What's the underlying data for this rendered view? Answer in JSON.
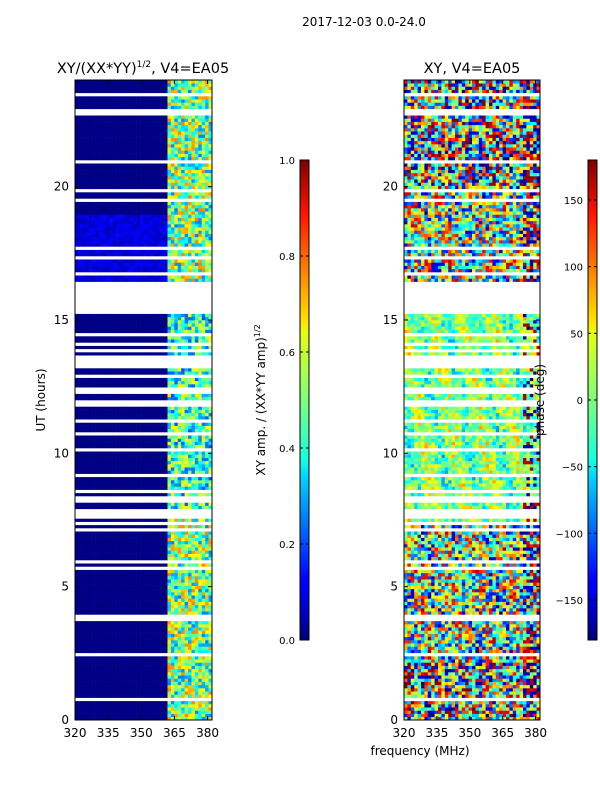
{
  "suptitle": "2017-12-03 0.0-24.0",
  "shared_xlabel": "frequency (MHz)",
  "chart_data": [
    {
      "type": "heatmap",
      "title_main": "XY/(XX*YY)",
      "title_exp": "1/2",
      "title_tail": ", V4=EA05",
      "xlabel": "",
      "ylabel": "UT (hours)",
      "xlim": [
        320,
        382
      ],
      "ylim": [
        0,
        24
      ],
      "xticks": [
        320,
        335,
        350,
        365,
        380
      ],
      "yticks": [
        0,
        5,
        10,
        15,
        20
      ],
      "colorbar": {
        "label_main": "XY amp. / (XX*YY amp)",
        "label_exp": "1/2",
        "range": [
          0.0,
          1.0
        ],
        "ticks": [
          "0.0",
          "0.2",
          "0.4",
          "0.6",
          "0.8",
          "1.0"
        ],
        "tick_values": [
          0.0,
          0.2,
          0.4,
          0.6,
          0.8,
          1.0
        ],
        "colormap": "jet"
      },
      "data_notes": "Mostly ~0 (dark blue) below 362 MHz; band 362-382 MHz shows amplitudes ~0.3-0.8; horizontal white gaps = flagged times; 15.5-16.3 h fully flagged."
    },
    {
      "type": "heatmap",
      "title_main": "XY, V4=EA05",
      "xlabel": "",
      "ylabel": "",
      "xlim": [
        320,
        382
      ],
      "ylim": [
        0,
        24
      ],
      "xticks": [
        320,
        335,
        350,
        365,
        380
      ],
      "yticks": [
        0,
        5,
        10,
        15,
        20
      ],
      "colorbar": {
        "label": "phase (deg)",
        "range": [
          -180,
          180
        ],
        "ticks": [
          "−150",
          "−100",
          "−50",
          "0",
          "50",
          "100",
          "150"
        ],
        "tick_values": [
          -150,
          -100,
          -50,
          0,
          50,
          100,
          150
        ],
        "colormap": "jet"
      },
      "data_notes": "XY phase in degrees, noisy; large positive/negative phases near band edges and 0-2 h and 20-24 h."
    }
  ]
}
